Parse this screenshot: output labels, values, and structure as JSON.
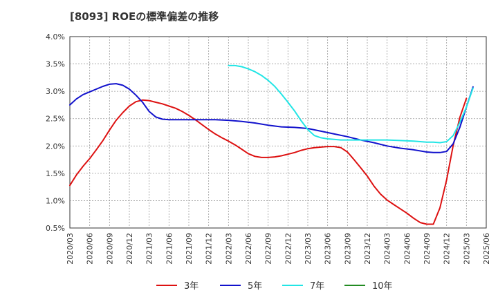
{
  "chart_data": {
    "type": "line",
    "title": "[8093]  ROEの標準偏差の推移",
    "ylim": [
      0.5,
      4.0
    ],
    "yticks": [
      0.5,
      1.0,
      1.5,
      2.0,
      2.5,
      3.0,
      3.5,
      4.0
    ],
    "ytick_labels": [
      "0.5%",
      "1.0%",
      "1.5%",
      "2.0%",
      "2.5%",
      "3.0%",
      "3.5%",
      "4.0%"
    ],
    "xlim": [
      2020.0,
      2025.25
    ],
    "xticks": [
      "2020/03",
      "2020/06",
      "2020/09",
      "2020/12",
      "2021/03",
      "2021/06",
      "2021/09",
      "2021/12",
      "2022/03",
      "2022/06",
      "2022/09",
      "2022/12",
      "2023/03",
      "2023/06",
      "2023/09",
      "2023/12",
      "2024/03",
      "2024/06",
      "2024/09",
      "2024/12",
      "2025/03",
      "2025/06"
    ],
    "grid": true,
    "legend_position": "bottom",
    "series": [
      {
        "name": "3年",
        "color": "#dd1111",
        "x": [
          2020.0,
          2020.083,
          2020.167,
          2020.25,
          2020.333,
          2020.417,
          2020.5,
          2020.583,
          2020.667,
          2020.75,
          2020.833,
          2020.917,
          2021.0,
          2021.083,
          2021.167,
          2021.25,
          2021.333,
          2021.417,
          2021.5,
          2021.583,
          2021.667,
          2021.75,
          2021.833,
          2021.917,
          2022.0,
          2022.083,
          2022.167,
          2022.25,
          2022.333,
          2022.417,
          2022.5,
          2022.583,
          2022.667,
          2022.75,
          2022.833,
          2022.917,
          2023.0,
          2023.083,
          2023.167,
          2023.25,
          2023.333,
          2023.417,
          2023.5,
          2023.583,
          2023.667,
          2023.75,
          2023.833,
          2023.917,
          2024.0,
          2024.083,
          2024.167,
          2024.25,
          2024.333,
          2024.417,
          2024.5,
          2024.583,
          2024.667,
          2024.75,
          2024.833,
          2024.917,
          2025.0
        ],
        "values": [
          1.28,
          1.47,
          1.63,
          1.77,
          1.93,
          2.1,
          2.29,
          2.47,
          2.61,
          2.73,
          2.81,
          2.84,
          2.83,
          2.8,
          2.77,
          2.73,
          2.69,
          2.63,
          2.56,
          2.48,
          2.39,
          2.3,
          2.22,
          2.15,
          2.09,
          2.02,
          1.94,
          1.86,
          1.81,
          1.79,
          1.79,
          1.8,
          1.82,
          1.85,
          1.88,
          1.92,
          1.95,
          1.97,
          1.98,
          1.99,
          1.99,
          1.97,
          1.89,
          1.75,
          1.6,
          1.45,
          1.27,
          1.12,
          1.01,
          0.93,
          0.85,
          0.77,
          0.68,
          0.6,
          0.57,
          0.57,
          0.87,
          1.38,
          2.01,
          2.52,
          2.87
        ]
      },
      {
        "name": "5年",
        "color": "#1111cc",
        "x": [
          2020.0,
          2020.083,
          2020.167,
          2020.25,
          2020.333,
          2020.417,
          2020.5,
          2020.583,
          2020.667,
          2020.75,
          2020.833,
          2020.917,
          2021.0,
          2021.083,
          2021.167,
          2021.25,
          2021.333,
          2021.5,
          2021.667,
          2021.833,
          2022.0,
          2022.167,
          2022.333,
          2022.5,
          2022.667,
          2022.833,
          2023.0,
          2023.167,
          2023.333,
          2023.5,
          2023.667,
          2023.833,
          2024.0,
          2024.167,
          2024.333,
          2024.5,
          2024.583,
          2024.667,
          2024.75,
          2024.833,
          2024.917,
          2025.0,
          2025.083
        ],
        "values": [
          2.75,
          2.86,
          2.94,
          2.99,
          3.04,
          3.09,
          3.13,
          3.14,
          3.11,
          3.04,
          2.93,
          2.8,
          2.63,
          2.53,
          2.49,
          2.48,
          2.48,
          2.48,
          2.48,
          2.48,
          2.47,
          2.45,
          2.42,
          2.38,
          2.35,
          2.34,
          2.32,
          2.27,
          2.22,
          2.17,
          2.11,
          2.06,
          2.0,
          1.96,
          1.93,
          1.89,
          1.88,
          1.88,
          1.9,
          2.04,
          2.34,
          2.71,
          3.08
        ]
      },
      {
        "name": "7年",
        "color": "#22e5e5",
        "x": [
          2022.0,
          2022.083,
          2022.167,
          2022.25,
          2022.333,
          2022.417,
          2022.5,
          2022.583,
          2022.667,
          2022.75,
          2022.833,
          2022.917,
          2023.0,
          2023.083,
          2023.167,
          2023.25,
          2023.333,
          2023.417,
          2023.5,
          2023.667,
          2023.833,
          2024.0,
          2024.167,
          2024.333,
          2024.5,
          2024.583,
          2024.667,
          2024.75,
          2024.833,
          2024.917,
          2025.0,
          2025.083
        ],
        "values": [
          3.47,
          3.47,
          3.45,
          3.41,
          3.36,
          3.29,
          3.2,
          3.09,
          2.95,
          2.8,
          2.64,
          2.46,
          2.3,
          2.19,
          2.15,
          2.13,
          2.12,
          2.11,
          2.11,
          2.11,
          2.11,
          2.11,
          2.1,
          2.09,
          2.07,
          2.07,
          2.06,
          2.08,
          2.19,
          2.43,
          2.71,
          3.06
        ]
      },
      {
        "name": "10年",
        "color": "#228b22",
        "x": [],
        "values": []
      }
    ]
  }
}
